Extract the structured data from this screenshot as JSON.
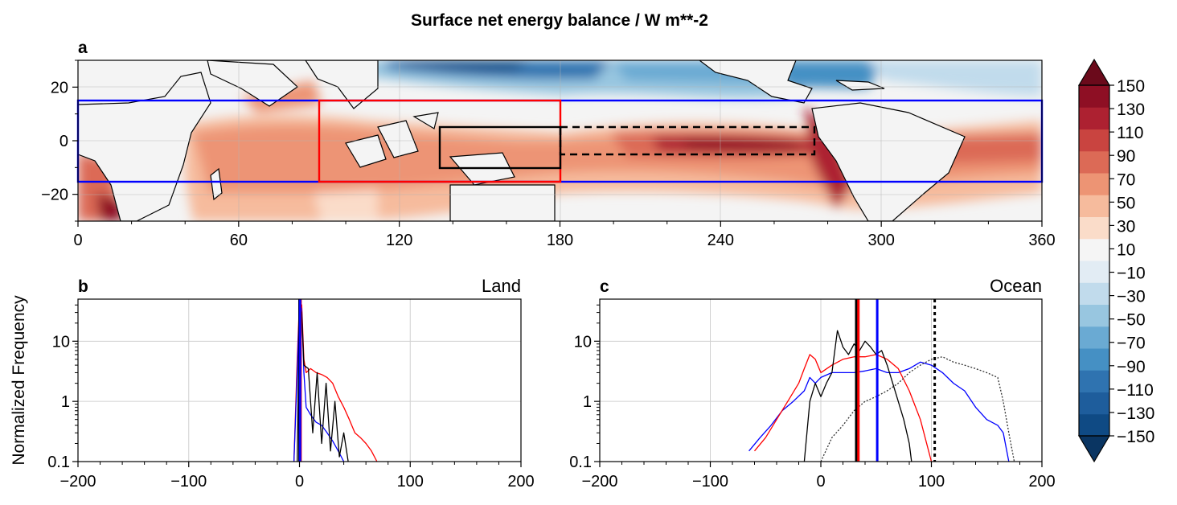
{
  "figure": {
    "title": "Surface net energy balance / W m**-2"
  },
  "panels": {
    "a": {
      "label": "a"
    },
    "b": {
      "label": "b",
      "side_title": "Land"
    },
    "c": {
      "label": "c",
      "side_title": "Ocean"
    }
  },
  "shared_ylabel": "Normalized Frequency",
  "chart_data": [
    {
      "type": "heatmap",
      "panel": "a",
      "description_units": "W m**-2",
      "xlim": [
        0,
        360
      ],
      "ylim": [
        -30,
        30
      ],
      "xticks": [
        0,
        60,
        120,
        180,
        240,
        300,
        360
      ],
      "xtick_labels": [
        "0",
        "60",
        "120",
        "180",
        "240",
        "300",
        "360"
      ],
      "yticks": [
        20,
        0,
        -20
      ],
      "ytick_labels": [
        "20",
        "0",
        "−20"
      ],
      "boxes": [
        {
          "name": "tropical-band",
          "color": "#0000ff",
          "style": "solid",
          "lon": [
            0,
            360
          ],
          "lat": [
            -15,
            15
          ]
        },
        {
          "name": "west-pacific-region",
          "color": "#ff0000",
          "style": "solid",
          "lon": [
            90,
            180
          ],
          "lat": [
            -15,
            15
          ]
        },
        {
          "name": "warm-pool-box",
          "color": "#000000",
          "style": "solid",
          "lon": [
            135,
            180
          ],
          "lat": [
            -10,
            5
          ]
        },
        {
          "name": "cold-tongue-box",
          "color": "#000000",
          "style": "dashed",
          "lon": [
            180,
            275
          ],
          "lat": [
            -5,
            5
          ]
        }
      ]
    },
    {
      "type": "line",
      "panel": "b",
      "yscale": "log",
      "xlim": [
        -200,
        200
      ],
      "ylim": [
        0.1,
        50
      ],
      "xticks": [
        -200,
        -100,
        0,
        100,
        200
      ],
      "xtick_labels": [
        "−200",
        "−100",
        "0",
        "100",
        "200"
      ],
      "yticks": [
        0.1,
        1,
        10
      ],
      "ytick_labels": [
        "0.1",
        "1",
        "10"
      ],
      "series": [
        {
          "name": "red-region",
          "color": "#ff0000",
          "style": "solid",
          "x": [
            -5,
            -2,
            0,
            2,
            4,
            6,
            10,
            15,
            20,
            25,
            30,
            35,
            40,
            45,
            50,
            55,
            60,
            65,
            70
          ],
          "y": [
            0.1,
            5,
            45,
            40,
            5,
            3,
            3.5,
            3.0,
            2.8,
            2.5,
            2.0,
            1.2,
            0.8,
            0.5,
            0.3,
            0.25,
            0.2,
            0.15,
            0.1
          ]
        },
        {
          "name": "blue-band",
          "color": "#0000ff",
          "style": "solid",
          "x": [
            -5,
            -2,
            0,
            2,
            4,
            6,
            10,
            15,
            20,
            25,
            30,
            35,
            40
          ],
          "y": [
            0.1,
            3,
            40,
            35,
            3,
            0.8,
            0.6,
            0.45,
            0.4,
            0.3,
            0.22,
            0.15,
            0.1
          ]
        },
        {
          "name": "black-box",
          "color": "#000000",
          "style": "solid",
          "x": [
            -2,
            0,
            2,
            4,
            8,
            12,
            16,
            20,
            24,
            28,
            32,
            36,
            40,
            44
          ],
          "y": [
            0.1,
            45,
            30,
            4,
            3.5,
            0.3,
            3.0,
            0.2,
            2.0,
            0.15,
            1.0,
            0.12,
            0.3,
            0.1
          ]
        }
      ],
      "vlines": [
        {
          "x": 0,
          "color": "#000000",
          "style": "solid"
        },
        {
          "x": 1,
          "color": "#ff0000",
          "style": "solid"
        },
        {
          "x": 0.5,
          "color": "#0000ff",
          "style": "solid"
        }
      ]
    },
    {
      "type": "line",
      "panel": "c",
      "yscale": "log",
      "xlim": [
        -200,
        200
      ],
      "ylim": [
        0.1,
        50
      ],
      "xticks": [
        -200,
        -100,
        0,
        100,
        200
      ],
      "xtick_labels": [
        "−200",
        "−100",
        "0",
        "100",
        "200"
      ],
      "yticks": [
        0.1,
        1,
        10
      ],
      "ytick_labels": [
        "0.1",
        "1",
        "10"
      ],
      "series": [
        {
          "name": "blue-band",
          "color": "#0000ff",
          "style": "solid",
          "x": [
            -65,
            -55,
            -45,
            -35,
            -25,
            -15,
            -10,
            -5,
            0,
            10,
            20,
            30,
            40,
            50,
            60,
            70,
            80,
            90,
            100,
            110,
            120,
            130,
            140,
            150,
            160,
            165,
            170
          ],
          "y": [
            0.15,
            0.25,
            0.4,
            0.7,
            1.0,
            1.5,
            2.5,
            2.0,
            2.5,
            3.0,
            3.0,
            3.0,
            3.2,
            3.5,
            3.0,
            3.0,
            3.5,
            4.5,
            4.0,
            3.0,
            2.0,
            1.5,
            0.8,
            0.5,
            0.4,
            0.3,
            0.1
          ]
        },
        {
          "name": "red-region",
          "color": "#ff0000",
          "style": "solid",
          "x": [
            -60,
            -50,
            -40,
            -30,
            -20,
            -15,
            -10,
            -5,
            0,
            10,
            20,
            30,
            40,
            50,
            60,
            70,
            80,
            90,
            100
          ],
          "y": [
            0.15,
            0.25,
            0.5,
            1.0,
            2.0,
            3.5,
            6.0,
            5.0,
            3.0,
            4.0,
            5.0,
            5.5,
            5.5,
            6.0,
            5.0,
            3.5,
            1.5,
            0.5,
            0.1
          ]
        },
        {
          "name": "black-box",
          "color": "#000000",
          "style": "solid",
          "x": [
            -15,
            -10,
            -5,
            0,
            5,
            10,
            15,
            20,
            25,
            30,
            35,
            40,
            45,
            50,
            55,
            60,
            65,
            70,
            75,
            80,
            82
          ],
          "y": [
            0.1,
            1.0,
            2.0,
            1.2,
            2.0,
            3.0,
            15.0,
            8.0,
            6.0,
            9.0,
            7.0,
            10.0,
            8.0,
            6.0,
            7.0,
            4.0,
            2.0,
            1.0,
            0.5,
            0.2,
            0.1
          ]
        },
        {
          "name": "dashed-box",
          "color": "#333333",
          "style": "dotted",
          "x": [
            0,
            10,
            20,
            30,
            40,
            50,
            60,
            70,
            80,
            90,
            100,
            110,
            120,
            130,
            140,
            150,
            160,
            165,
            170,
            175
          ],
          "y": [
            0.1,
            0.25,
            0.4,
            0.7,
            1.0,
            1.2,
            1.5,
            2.0,
            3.0,
            4.0,
            5.0,
            5.5,
            4.5,
            4.0,
            3.5,
            3.0,
            2.5,
            1.0,
            0.3,
            0.1
          ]
        }
      ],
      "vlines": [
        {
          "x": 32,
          "color": "#000000",
          "style": "solid"
        },
        {
          "x": 34,
          "color": "#ff0000",
          "style": "solid"
        },
        {
          "x": 51,
          "color": "#0000ff",
          "style": "solid"
        },
        {
          "x": 103,
          "color": "#000000",
          "style": "dotted"
        }
      ]
    }
  ],
  "colorbar": {
    "levels": [
      -150,
      -130,
      -110,
      -90,
      -70,
      -50,
      -30,
      -10,
      10,
      30,
      50,
      70,
      90,
      110,
      130,
      150
    ],
    "labels": [
      "−150",
      "−130",
      "−110",
      "−90",
      "−70",
      "−50",
      "−30",
      "−10",
      "10",
      "30",
      "50",
      "70",
      "90",
      "110",
      "130",
      "150"
    ],
    "colors": [
      "#0f4a84",
      "#1e5d9c",
      "#2f73b0",
      "#4590c4",
      "#6aaad3",
      "#98c6e0",
      "#c1dbec",
      "#e2ecf4",
      "#f5f5f5",
      "#fadcc9",
      "#f6bb9d",
      "#ed9474",
      "#dc6a56",
      "#c94440",
      "#ad2131",
      "#8e0f24"
    ],
    "under_color": "#0a3562",
    "over_color": "#6b0a1b"
  },
  "map_colors": {
    "land": "#f4f4f4"
  }
}
